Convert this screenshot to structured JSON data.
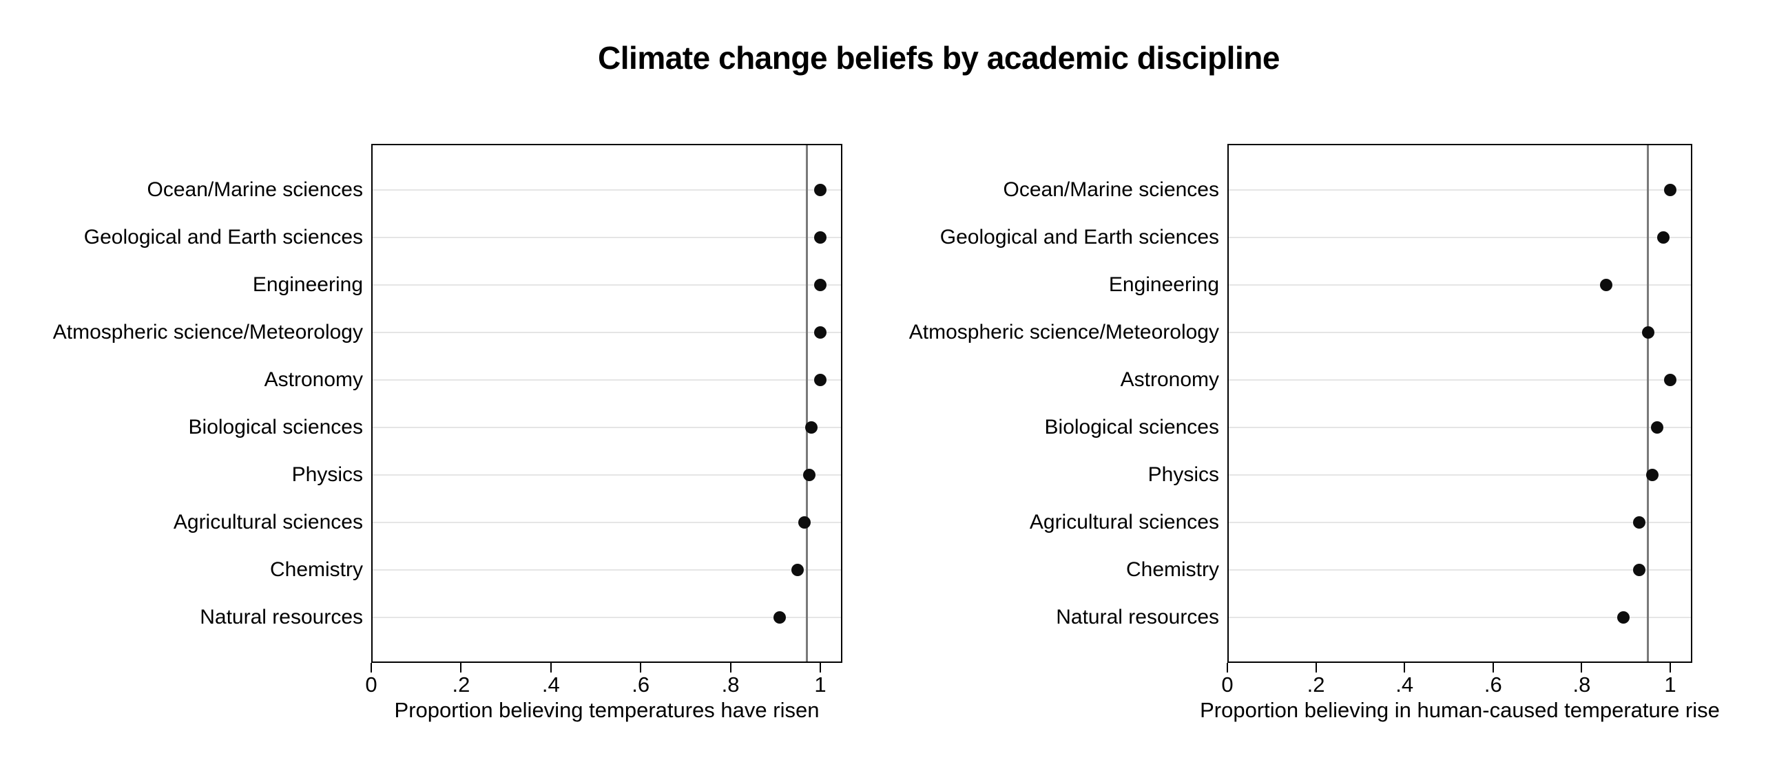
{
  "title": "Climate change beliefs by academic discipline",
  "chart_data": {
    "type": "scatter",
    "subtype": "two-panel horizontal dot plot",
    "title": "Climate change beliefs by academic discipline",
    "categories": [
      "Ocean/Marine sciences",
      "Geological and Earth sciences",
      "Engineering",
      "Atmospheric science/Meteorology",
      "Astronomy",
      "Biological sciences",
      "Physics",
      "Agricultural sciences",
      "Chemistry",
      "Natural resources"
    ],
    "panels": [
      {
        "xlabel": "Proportion believing temperatures have risen",
        "values": [
          1.0,
          1.0,
          1.0,
          1.0,
          1.0,
          0.98,
          0.975,
          0.965,
          0.95,
          0.91
        ],
        "reference_line": 0.97,
        "xticks": [
          0,
          0.2,
          0.4,
          0.6,
          0.8,
          1
        ],
        "xtick_labels": [
          "0",
          ".2",
          ".4",
          ".6",
          ".8",
          "1"
        ],
        "xlim": [
          0,
          1.05
        ]
      },
      {
        "xlabel": "Proportion believing in human-caused temperature rise",
        "values": [
          1.0,
          0.985,
          0.855,
          0.95,
          1.0,
          0.97,
          0.96,
          0.93,
          0.93,
          0.895
        ],
        "reference_line": 0.95,
        "xticks": [
          0,
          0.2,
          0.4,
          0.6,
          0.8,
          1
        ],
        "xtick_labels": [
          "0",
          ".2",
          ".4",
          ".6",
          ".8",
          "1"
        ],
        "xlim": [
          0,
          1.05
        ]
      }
    ],
    "legend": "none",
    "grid": "light horizontal gridline per category",
    "colors": {
      "background": "#ffffff",
      "text": "#000000",
      "dot": "#0d0d0d",
      "reference_line": "#7a7a7a",
      "gridline": "#e5e5e5",
      "plot_border": "#000000"
    }
  }
}
